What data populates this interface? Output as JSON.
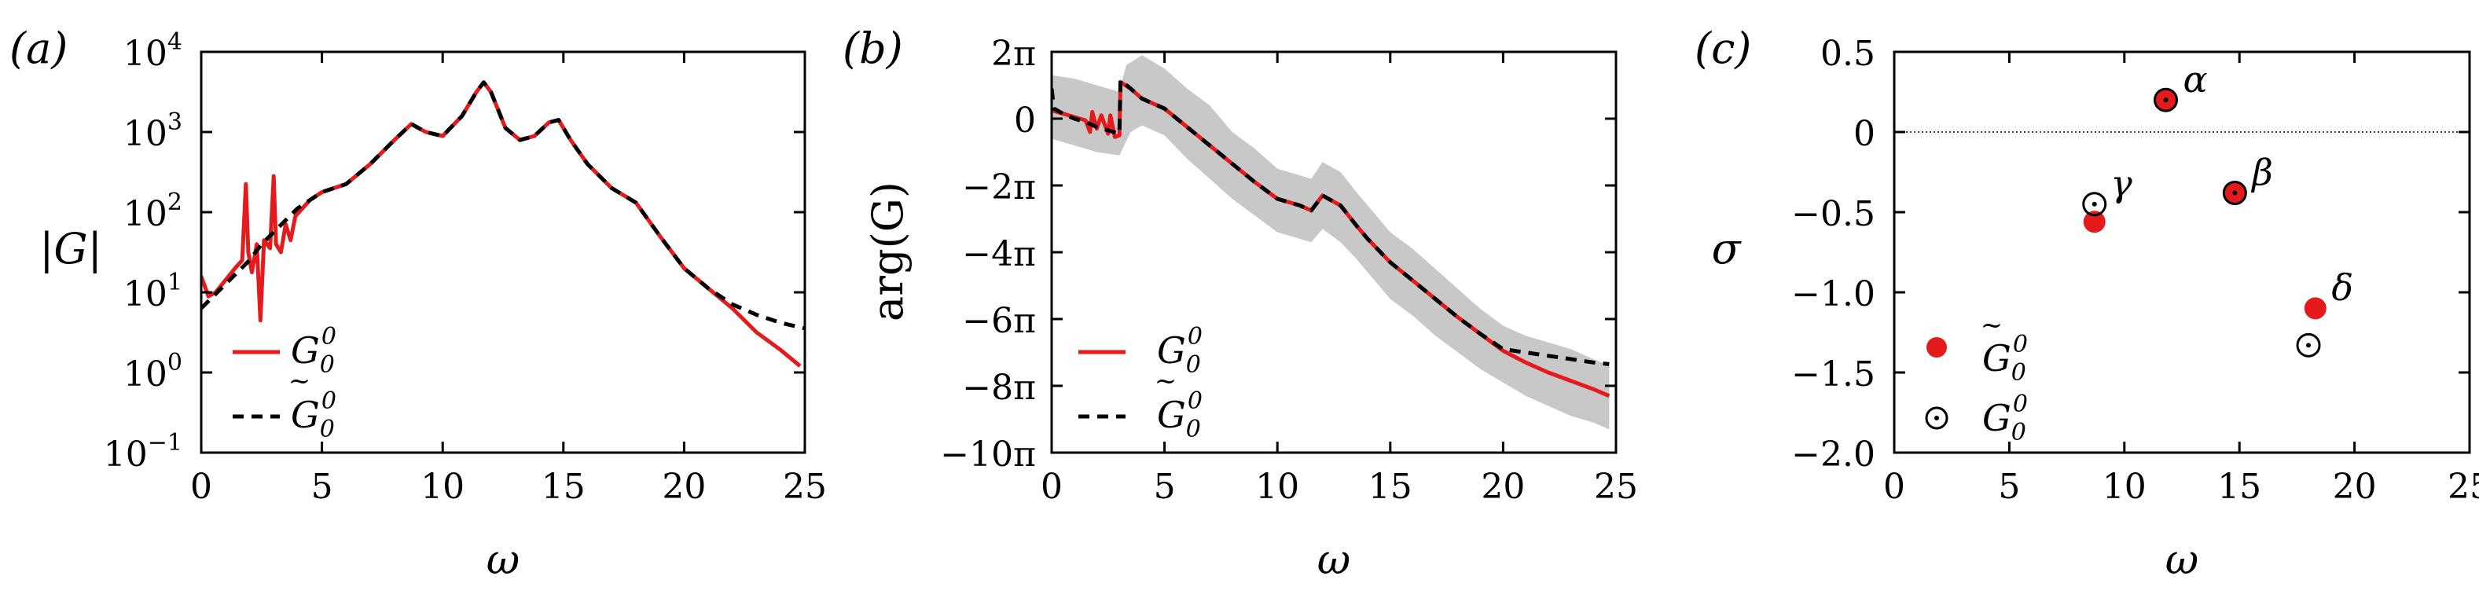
{
  "chart_data": [
    {
      "panel": "(a)",
      "type": "line",
      "xlabel": "ω",
      "ylabel": "|G|",
      "xlim": [
        0,
        25
      ],
      "ylim_log10": [
        -1,
        4
      ],
      "yscale": "log",
      "xticks": [
        0,
        5,
        10,
        15,
        20,
        25
      ],
      "yticks": [
        {
          "exp": -1,
          "base": "10",
          "sup": "−1"
        },
        {
          "exp": 0,
          "base": "10",
          "sup": "0"
        },
        {
          "exp": 1,
          "base": "10",
          "sup": "1"
        },
        {
          "exp": 2,
          "base": "10",
          "sup": "2"
        },
        {
          "exp": 3,
          "base": "10",
          "sup": "3"
        },
        {
          "exp": 4,
          "base": "10",
          "sup": "4"
        }
      ],
      "legend": {
        "position": "bottom-left",
        "entries": [
          {
            "series": "G00",
            "main": "G",
            "sub": "0",
            "sup": "0",
            "tilde": false
          },
          {
            "series": "G00_tilde",
            "main": "G",
            "sub": "0",
            "sup": "0",
            "tilde": true
          }
        ]
      },
      "series": [
        {
          "name": "G00",
          "color": "#e41a1c",
          "dash": "solid",
          "points": [
            [
              0,
              1.2
            ],
            [
              0.3,
              0.95
            ],
            [
              0.6,
              1.0
            ],
            [
              1.0,
              1.15
            ],
            [
              1.4,
              1.3
            ],
            [
              1.7,
              1.4
            ],
            [
              1.85,
              2.35
            ],
            [
              1.95,
              1.5
            ],
            [
              2.1,
              1.25
            ],
            [
              2.3,
              1.6
            ],
            [
              2.45,
              0.65
            ],
            [
              2.6,
              1.65
            ],
            [
              2.85,
              1.55
            ],
            [
              3.0,
              2.45
            ],
            [
              3.1,
              1.6
            ],
            [
              3.3,
              1.5
            ],
            [
              3.5,
              1.85
            ],
            [
              3.7,
              1.65
            ],
            [
              3.9,
              1.95
            ],
            [
              4.5,
              2.15
            ],
            [
              5,
              2.25
            ],
            [
              6,
              2.35
            ],
            [
              7,
              2.6
            ],
            [
              8,
              2.9
            ],
            [
              8.7,
              3.1
            ],
            [
              9.3,
              3.0
            ],
            [
              10,
              2.95
            ],
            [
              10.8,
              3.2
            ],
            [
              11.4,
              3.5
            ],
            [
              11.7,
              3.62
            ],
            [
              12.0,
              3.5
            ],
            [
              12.6,
              3.05
            ],
            [
              13.2,
              2.9
            ],
            [
              13.8,
              2.95
            ],
            [
              14.4,
              3.12
            ],
            [
              14.8,
              3.15
            ],
            [
              15.3,
              2.9
            ],
            [
              16,
              2.6
            ],
            [
              17,
              2.3
            ],
            [
              18,
              2.12
            ],
            [
              19,
              1.7
            ],
            [
              20,
              1.3
            ],
            [
              21,
              1.05
            ],
            [
              22,
              0.8
            ],
            [
              23,
              0.5
            ],
            [
              24,
              0.28
            ],
            [
              24.8,
              0.08
            ]
          ]
        },
        {
          "name": "G00_tilde",
          "color": "#000000",
          "dash": "dashed",
          "points": [
            [
              0,
              0.8
            ],
            [
              0.5,
              0.95
            ],
            [
              1.0,
              1.1
            ],
            [
              1.5,
              1.25
            ],
            [
              2.0,
              1.4
            ],
            [
              2.5,
              1.6
            ],
            [
              3.0,
              1.75
            ],
            [
              3.5,
              1.9
            ],
            [
              4.0,
              2.05
            ],
            [
              4.5,
              2.15
            ],
            [
              5,
              2.25
            ],
            [
              6,
              2.35
            ],
            [
              7,
              2.6
            ],
            [
              8,
              2.9
            ],
            [
              8.7,
              3.1
            ],
            [
              9.3,
              3.0
            ],
            [
              10,
              2.95
            ],
            [
              10.8,
              3.2
            ],
            [
              11.4,
              3.5
            ],
            [
              11.7,
              3.62
            ],
            [
              12.0,
              3.5
            ],
            [
              12.6,
              3.05
            ],
            [
              13.2,
              2.9
            ],
            [
              13.8,
              2.95
            ],
            [
              14.4,
              3.12
            ],
            [
              14.8,
              3.15
            ],
            [
              15.3,
              2.9
            ],
            [
              16,
              2.6
            ],
            [
              17,
              2.3
            ],
            [
              18,
              2.12
            ],
            [
              19,
              1.7
            ],
            [
              20,
              1.3
            ],
            [
              21,
              1.05
            ],
            [
              22,
              0.85
            ],
            [
              23,
              0.72
            ],
            [
              24,
              0.62
            ],
            [
              25,
              0.55
            ]
          ]
        }
      ]
    },
    {
      "panel": "(b)",
      "type": "line",
      "xlabel": "ω",
      "ylabel": "arg(G)",
      "units": "multiples of π",
      "xlim": [
        0,
        25
      ],
      "ylim": [
        -10,
        2
      ],
      "xticks": [
        0,
        5,
        10,
        15,
        20,
        25
      ],
      "yticks": [
        {
          "value": 2,
          "label": "2π"
        },
        {
          "value": 0,
          "label": "0"
        },
        {
          "value": -2,
          "label": "−2π"
        },
        {
          "value": -4,
          "label": "−4π"
        },
        {
          "value": -6,
          "label": "−6π"
        },
        {
          "value": -8,
          "label": "−8π"
        },
        {
          "value": -10,
          "label": "−10π"
        }
      ],
      "legend": {
        "position": "bottom-left",
        "entries": [
          {
            "series": "G00",
            "main": "G",
            "sub": "0",
            "sup": "0",
            "tilde": false
          },
          {
            "series": "G00_tilde",
            "main": "G",
            "sub": "0",
            "sup": "0",
            "tilde": true
          }
        ]
      },
      "band": {
        "color": "#c8c8c8",
        "upper": [
          [
            0,
            1.3
          ],
          [
            1,
            1.2
          ],
          [
            2,
            1.0
          ],
          [
            3,
            0.8
          ],
          [
            3.3,
            1.6
          ],
          [
            4,
            1.9
          ],
          [
            5,
            1.5
          ],
          [
            6,
            0.9
          ],
          [
            7,
            0.4
          ],
          [
            8,
            -0.4
          ],
          [
            9,
            -0.9
          ],
          [
            10,
            -1.5
          ],
          [
            11,
            -1.7
          ],
          [
            11.5,
            -1.8
          ],
          [
            12,
            -1.3
          ],
          [
            12.8,
            -1.6
          ],
          [
            13.5,
            -2.2
          ],
          [
            14,
            -2.6
          ],
          [
            15,
            -3.4
          ],
          [
            16,
            -3.9
          ],
          [
            17,
            -4.5
          ],
          [
            18,
            -5.1
          ],
          [
            19,
            -5.7
          ],
          [
            20,
            -6.2
          ],
          [
            21,
            -6.5
          ],
          [
            22,
            -6.7
          ],
          [
            23,
            -6.9
          ],
          [
            24,
            -7.2
          ],
          [
            24.7,
            -7.4
          ]
        ],
        "lower": [
          [
            0,
            -0.6
          ],
          [
            1,
            -0.8
          ],
          [
            2,
            -1.0
          ],
          [
            3,
            -1.1
          ],
          [
            3.5,
            -0.4
          ],
          [
            4,
            -0.2
          ],
          [
            5,
            -0.5
          ],
          [
            6,
            -1.2
          ],
          [
            7,
            -1.8
          ],
          [
            8,
            -2.4
          ],
          [
            9,
            -2.9
          ],
          [
            10,
            -3.4
          ],
          [
            11,
            -3.6
          ],
          [
            11.5,
            -3.7
          ],
          [
            12,
            -3.3
          ],
          [
            12.8,
            -3.7
          ],
          [
            13.5,
            -4.2
          ],
          [
            14,
            -4.6
          ],
          [
            15,
            -5.4
          ],
          [
            16,
            -5.9
          ],
          [
            17,
            -6.5
          ],
          [
            18,
            -7.0
          ],
          [
            19,
            -7.5
          ],
          [
            20,
            -7.9
          ],
          [
            21,
            -8.3
          ],
          [
            22,
            -8.6
          ],
          [
            23,
            -8.9
          ],
          [
            24,
            -9.1
          ],
          [
            24.7,
            -9.3
          ]
        ]
      },
      "series": [
        {
          "name": "G00",
          "color": "#e41a1c",
          "dash": "solid",
          "points": [
            [
              0,
              0.25
            ],
            [
              0.5,
              0.15
            ],
            [
              1,
              0.05
            ],
            [
              1.5,
              -0.05
            ],
            [
              1.7,
              -0.4
            ],
            [
              1.8,
              0.2
            ],
            [
              2.0,
              -0.3
            ],
            [
              2.2,
              0.1
            ],
            [
              2.5,
              -0.45
            ],
            [
              2.6,
              0.1
            ],
            [
              2.8,
              -0.55
            ],
            [
              3.0,
              -0.5
            ],
            [
              3.05,
              1.1
            ],
            [
              3.5,
              0.9
            ],
            [
              4,
              0.6
            ],
            [
              5,
              0.3
            ],
            [
              6,
              -0.25
            ],
            [
              7,
              -0.8
            ],
            [
              8,
              -1.35
            ],
            [
              9,
              -1.9
            ],
            [
              10,
              -2.4
            ],
            [
              11,
              -2.6
            ],
            [
              11.5,
              -2.75
            ],
            [
              12,
              -2.3
            ],
            [
              12.8,
              -2.6
            ],
            [
              13.5,
              -3.2
            ],
            [
              14,
              -3.6
            ],
            [
              15,
              -4.3
            ],
            [
              16,
              -4.85
            ],
            [
              17,
              -5.4
            ],
            [
              18,
              -5.95
            ],
            [
              19,
              -6.45
            ],
            [
              20,
              -6.95
            ],
            [
              21,
              -7.3
            ],
            [
              22,
              -7.6
            ],
            [
              23,
              -7.85
            ],
            [
              24,
              -8.1
            ],
            [
              24.7,
              -8.3
            ]
          ]
        },
        {
          "name": "G00_tilde",
          "color": "#000000",
          "dash": "dashed",
          "points": [
            [
              0,
              0.9
            ],
            [
              0.1,
              0.3
            ],
            [
              0.5,
              0.15
            ],
            [
              1,
              0.0
            ],
            [
              1.5,
              -0.1
            ],
            [
              2,
              -0.25
            ],
            [
              2.5,
              -0.35
            ],
            [
              3.0,
              -0.45
            ],
            [
              3.05,
              1.15
            ],
            [
              3.5,
              0.9
            ],
            [
              4,
              0.6
            ],
            [
              5,
              0.3
            ],
            [
              6,
              -0.25
            ],
            [
              7,
              -0.8
            ],
            [
              8,
              -1.35
            ],
            [
              9,
              -1.9
            ],
            [
              10,
              -2.4
            ],
            [
              11,
              -2.6
            ],
            [
              11.5,
              -2.75
            ],
            [
              12,
              -2.3
            ],
            [
              12.8,
              -2.6
            ],
            [
              13.5,
              -3.2
            ],
            [
              14,
              -3.6
            ],
            [
              15,
              -4.3
            ],
            [
              16,
              -4.85
            ],
            [
              17,
              -5.4
            ],
            [
              18,
              -5.95
            ],
            [
              19,
              -6.45
            ],
            [
              20,
              -6.9
            ],
            [
              21,
              -7.0
            ],
            [
              22,
              -7.1
            ],
            [
              23,
              -7.2
            ],
            [
              24,
              -7.3
            ],
            [
              24.7,
              -7.35
            ]
          ]
        }
      ]
    },
    {
      "panel": "(c)",
      "type": "scatter",
      "xlabel": "ω",
      "ylabel": "σ",
      "xlim": [
        0,
        25
      ],
      "ylim": [
        -2.0,
        0.5
      ],
      "xticks": [
        0,
        5,
        10,
        15,
        20,
        25
      ],
      "yticks": [
        {
          "value": 0.5,
          "label": "0.5"
        },
        {
          "value": 0,
          "label": "0"
        },
        {
          "value": -0.5,
          "label": "−0.5"
        },
        {
          "value": -1.0,
          "label": "−1.0"
        },
        {
          "value": -1.5,
          "label": "−1.5"
        },
        {
          "value": -2.0,
          "label": "−2.0"
        }
      ],
      "zero_line": true,
      "legend": {
        "position": "bottom-left",
        "entries": [
          {
            "series": "G00_tilde",
            "main": "G",
            "sub": "0",
            "sup": "0",
            "tilde": true,
            "marker": "filled"
          },
          {
            "series": "G00",
            "main": "G",
            "sub": "0",
            "sup": "0",
            "tilde": false,
            "marker": "open"
          }
        ]
      },
      "series": [
        {
          "name": "G00_tilde",
          "marker": "filled-circle",
          "color": "#e41a1c",
          "points": [
            [
              11.8,
              0.2
            ],
            [
              14.8,
              -0.38
            ],
            [
              8.7,
              -0.56
            ],
            [
              18.3,
              -1.1
            ]
          ]
        },
        {
          "name": "G00",
          "marker": "open-circle-dot",
          "color": "#000000",
          "points": [
            [
              11.8,
              0.2
            ],
            [
              14.8,
              -0.38
            ],
            [
              8.7,
              -0.45
            ],
            [
              18.0,
              -1.33
            ]
          ]
        }
      ],
      "annotations": [
        {
          "text": "α",
          "x": 12.55,
          "y": 0.25
        },
        {
          "text": "β",
          "x": 15.55,
          "y": -0.33
        },
        {
          "text": "γ",
          "x": 9.4,
          "y": -0.4
        },
        {
          "text": "δ",
          "x": 19.0,
          "y": -1.05
        }
      ]
    }
  ]
}
